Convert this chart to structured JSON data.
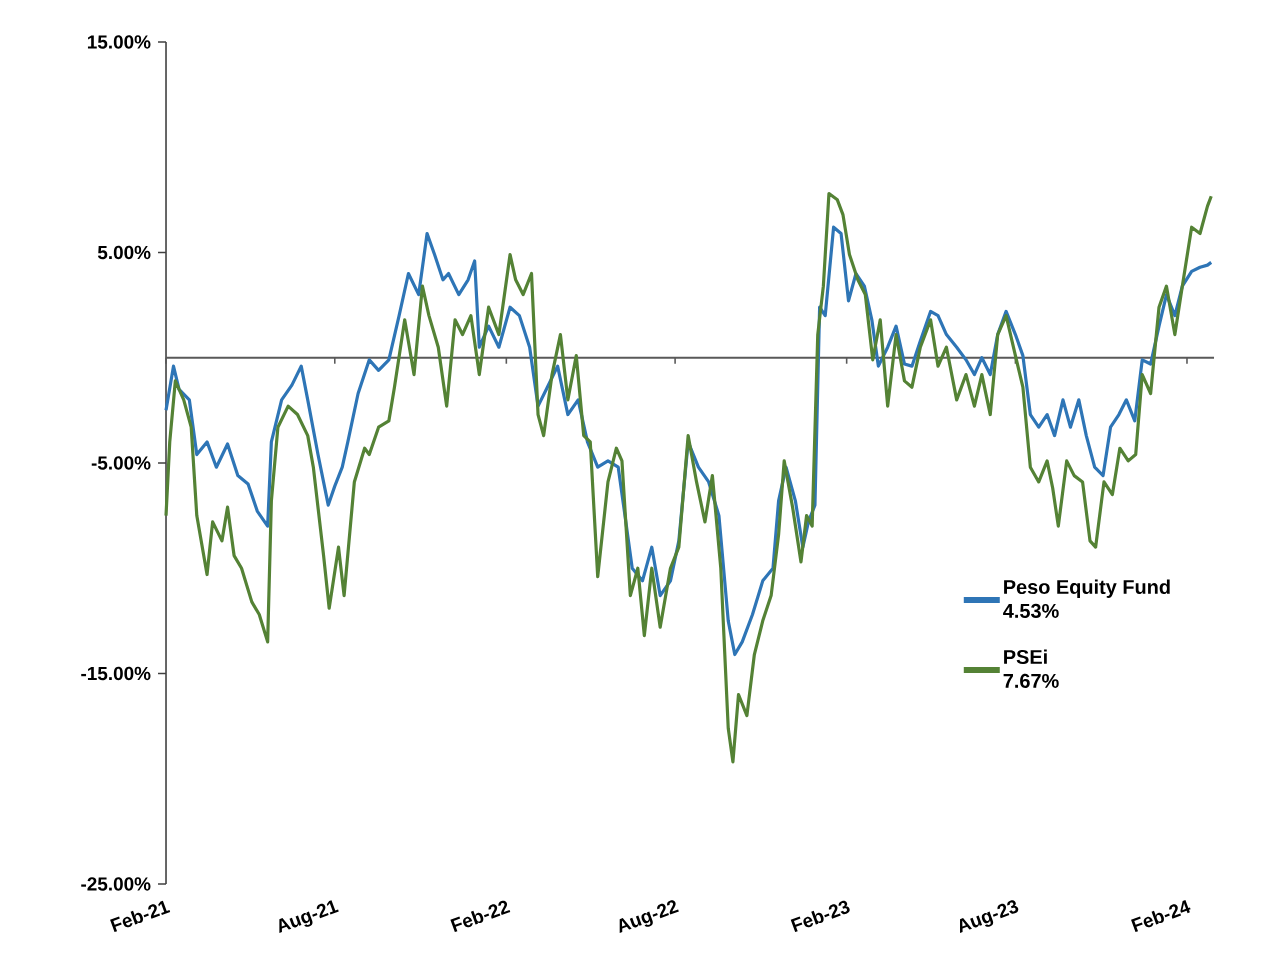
{
  "chart_data": {
    "type": "line",
    "xlim": [
      "2021-02-01",
      "2024-03-01"
    ],
    "ylim": [
      -25,
      15
    ],
    "xticks": [
      {
        "value": "2021-02-01",
        "label": "Feb-21"
      },
      {
        "value": "2021-08-01",
        "label": "Aug-21"
      },
      {
        "value": "2022-02-01",
        "label": "Feb-22"
      },
      {
        "value": "2022-08-01",
        "label": "Aug-22"
      },
      {
        "value": "2023-02-01",
        "label": "Feb-23"
      },
      {
        "value": "2023-08-01",
        "label": "Aug-23"
      },
      {
        "value": "2024-02-01",
        "label": "Feb-24"
      }
    ],
    "yticks": [
      {
        "value": -25,
        "label": "-25.00%"
      },
      {
        "value": -15,
        "label": "-15.00%"
      },
      {
        "value": -5,
        "label": "-5.00%"
      },
      {
        "value": 5,
        "label": "5.00%"
      },
      {
        "value": 15,
        "label": "15.00%"
      }
    ],
    "ref_lines": [
      {
        "axis": "y",
        "value": 0,
        "color": "#595959"
      }
    ],
    "legend": "bottom right",
    "marker": "none",
    "line_style": "solid",
    "grid": false,
    "annotations": [
      "4.53%",
      "7.67%"
    ],
    "series": [
      {
        "name": "Peso Equity Fund",
        "color": "#2e75b6",
        "x": [
          "2021-02-01",
          "2021-02-09",
          "2021-02-15",
          "2021-02-26",
          "2021-03-06",
          "2021-03-17",
          "2021-03-27",
          "2021-04-08",
          "2021-04-19",
          "2021-04-30",
          "2021-05-10",
          "2021-05-21",
          "2021-05-25",
          "2021-06-05",
          "2021-06-16",
          "2021-06-26",
          "2021-07-03",
          "2021-07-14",
          "2021-07-25",
          "2021-08-01",
          "2021-08-09",
          "2021-08-15",
          "2021-08-26",
          "2021-09-07",
          "2021-09-17",
          "2021-09-28",
          "2021-10-09",
          "2021-10-19",
          "2021-10-30",
          "2021-11-08",
          "2021-11-16",
          "2021-11-25",
          "2021-12-01",
          "2021-12-12",
          "2021-12-22",
          "2021-12-29",
          "2022-01-03",
          "2022-01-13",
          "2022-01-24",
          "2022-02-05",
          "2022-02-15",
          "2022-02-26",
          "2022-03-07",
          "2022-03-17",
          "2022-03-28",
          "2022-04-08",
          "2022-04-19",
          "2022-04-29",
          "2022-05-10",
          "2022-05-21",
          "2022-06-01",
          "2022-06-07",
          "2022-06-16",
          "2022-06-27",
          "2022-07-07",
          "2022-07-16",
          "2022-07-27",
          "2022-08-05",
          "2022-08-15",
          "2022-08-26",
          "2022-09-06",
          "2022-09-17",
          "2022-09-27",
          "2022-10-04",
          "2022-10-12",
          "2022-10-23",
          "2022-11-03",
          "2022-11-14",
          "2022-11-20",
          "2022-11-28",
          "2022-12-08",
          "2022-12-16",
          "2022-12-22",
          "2022-12-29",
          "2023-01-03",
          "2023-01-09",
          "2023-01-18",
          "2023-01-26",
          "2023-02-03",
          "2023-02-11",
          "2023-02-20",
          "2023-02-28",
          "2023-03-07",
          "2023-03-17",
          "2023-03-26",
          "2023-04-04",
          "2023-04-12",
          "2023-04-21",
          "2023-05-02",
          "2023-05-10",
          "2023-05-19",
          "2023-05-30",
          "2023-06-09",
          "2023-06-18",
          "2023-06-26",
          "2023-07-05",
          "2023-07-13",
          "2023-07-22",
          "2023-08-01",
          "2023-08-09",
          "2023-08-17",
          "2023-08-26",
          "2023-09-04",
          "2023-09-12",
          "2023-09-21",
          "2023-09-29",
          "2023-10-08",
          "2023-10-16",
          "2023-10-25",
          "2023-11-03",
          "2023-11-11",
          "2023-11-20",
          "2023-11-28",
          "2023-12-07",
          "2023-12-15",
          "2023-12-24",
          "2024-01-02",
          "2024-01-10",
          "2024-01-19",
          "2024-01-27",
          "2024-02-06",
          "2024-02-15",
          "2024-02-23",
          "2024-02-27"
        ],
        "values": [
          -2.5,
          -0.4,
          -1.5,
          -2,
          -4.6,
          -4,
          -5.2,
          -4.1,
          -5.6,
          -6,
          -7.3,
          -8,
          -4,
          -2,
          -1.3,
          -0.4,
          -2,
          -4.6,
          -7,
          -6.1,
          -5.2,
          -4,
          -1.7,
          -0.1,
          -0.6,
          -0.1,
          2,
          4,
          3,
          5.9,
          4.9,
          3.7,
          4,
          3,
          3.7,
          4.6,
          0.5,
          1.5,
          0.5,
          2.4,
          2,
          0.5,
          -2.3,
          -1.4,
          -0.4,
          -2.7,
          -2,
          -4,
          -5.2,
          -4.9,
          -5.2,
          -7.1,
          -10,
          -10.6,
          -9,
          -11.3,
          -10.6,
          -8.7,
          -4,
          -5.2,
          -5.9,
          -7.5,
          -12.5,
          -14.1,
          -13.5,
          -12.2,
          -10.6,
          -10,
          -6.8,
          -5.2,
          -6.8,
          -9,
          -7.8,
          -7,
          2.4,
          2,
          6.2,
          5.9,
          2.7,
          4,
          3.4,
          1.8,
          -0.4,
          0.5,
          1.5,
          -0.3,
          -0.4,
          0.8,
          2.2,
          2,
          1.1,
          0.5,
          -0.1,
          -0.8,
          0,
          -0.8,
          1.1,
          2.2,
          1.1,
          0.1,
          -2.7,
          -3.3,
          -2.7,
          -3.7,
          -2,
          -3.3,
          -2,
          -3.7,
          -5.2,
          -5.6,
          -3.3,
          -2.7,
          -2,
          -3,
          -0.1,
          -0.3,
          1.5,
          3,
          2,
          3.4,
          4.1,
          4.3,
          4.4,
          4.53
        ]
      },
      {
        "name": "PSEi",
        "color": "#548235",
        "x": [
          "2021-02-01",
          "2021-02-05",
          "2021-02-11",
          "2021-02-20",
          "2021-02-28",
          "2021-03-06",
          "2021-03-17",
          "2021-03-23",
          "2021-04-02",
          "2021-04-08",
          "2021-04-15",
          "2021-04-23",
          "2021-05-04",
          "2021-05-12",
          "2021-05-21",
          "2021-05-25",
          "2021-06-01",
          "2021-06-12",
          "2021-06-22",
          "2021-07-03",
          "2021-07-09",
          "2021-07-20",
          "2021-07-26",
          "2021-08-05",
          "2021-08-11",
          "2021-08-22",
          "2021-09-02",
          "2021-09-07",
          "2021-09-17",
          "2021-09-28",
          "2021-10-04",
          "2021-10-15",
          "2021-10-25",
          "2021-11-03",
          "2021-11-10",
          "2021-11-20",
          "2021-11-29",
          "2021-12-08",
          "2021-12-16",
          "2021-12-25",
          "2022-01-03",
          "2022-01-13",
          "2022-01-24",
          "2022-02-05",
          "2022-02-11",
          "2022-02-19",
          "2022-02-28",
          "2022-03-07",
          "2022-03-13",
          "2022-03-22",
          "2022-03-31",
          "2022-04-08",
          "2022-04-17",
          "2022-04-25",
          "2022-05-02",
          "2022-05-10",
          "2022-05-21",
          "2022-05-30",
          "2022-06-05",
          "2022-06-14",
          "2022-06-22",
          "2022-06-29",
          "2022-07-07",
          "2022-07-16",
          "2022-07-27",
          "2022-08-05",
          "2022-08-15",
          "2022-08-24",
          "2022-09-02",
          "2022-09-10",
          "2022-09-19",
          "2022-09-27",
          "2022-10-02",
          "2022-10-08",
          "2022-10-17",
          "2022-10-25",
          "2022-11-03",
          "2022-11-12",
          "2022-11-20",
          "2022-11-26",
          "2022-12-05",
          "2022-12-14",
          "2022-12-20",
          "2022-12-26",
          "2023-01-01",
          "2023-01-07",
          "2023-01-13",
          "2023-01-22",
          "2023-01-28",
          "2023-02-04",
          "2023-02-13",
          "2023-02-21",
          "2023-03-01",
          "2023-03-09",
          "2023-03-17",
          "2023-03-26",
          "2023-04-04",
          "2023-04-12",
          "2023-04-21",
          "2023-05-02",
          "2023-05-10",
          "2023-05-19",
          "2023-05-30",
          "2023-06-09",
          "2023-06-18",
          "2023-06-26",
          "2023-07-05",
          "2023-07-13",
          "2023-07-22",
          "2023-08-01",
          "2023-08-09",
          "2023-08-17",
          "2023-08-26",
          "2023-09-04",
          "2023-09-10",
          "2023-09-16",
          "2023-09-25",
          "2023-10-03",
          "2023-10-12",
          "2023-10-20",
          "2023-10-26",
          "2023-11-04",
          "2023-11-13",
          "2023-11-21",
          "2023-11-30",
          "2023-12-08",
          "2023-12-15",
          "2023-12-24",
          "2024-01-02",
          "2024-01-10",
          "2024-01-19",
          "2024-01-27",
          "2024-02-06",
          "2024-02-15",
          "2024-02-23",
          "2024-02-27"
        ],
        "values": [
          -7.5,
          -4,
          -1.1,
          -2,
          -3.3,
          -7.5,
          -10.3,
          -7.8,
          -8.7,
          -7.1,
          -9.4,
          -10,
          -11.6,
          -12.2,
          -13.5,
          -6.8,
          -3.3,
          -2.3,
          -2.7,
          -3.7,
          -5.2,
          -9.4,
          -11.9,
          -9,
          -11.3,
          -5.9,
          -4.3,
          -4.6,
          -3.3,
          -3,
          -1.4,
          1.8,
          -0.8,
          3.4,
          2,
          0.5,
          -2.3,
          1.8,
          1.1,
          2,
          -0.8,
          2.4,
          1.1,
          4.9,
          3.7,
          3,
          4,
          -2.7,
          -3.7,
          -0.8,
          1.1,
          -2,
          0.1,
          -3.7,
          -4,
          -10.4,
          -5.9,
          -4.3,
          -4.9,
          -11.3,
          -10,
          -13.2,
          -10,
          -12.8,
          -10,
          -9,
          -3.7,
          -5.9,
          -7.8,
          -5.6,
          -10,
          -17.6,
          -19.2,
          -16,
          -17,
          -14.1,
          -12.5,
          -11.3,
          -8.4,
          -4.9,
          -7.1,
          -9.7,
          -7.5,
          -8,
          1.1,
          3.4,
          7.8,
          7.5,
          6.8,
          4.9,
          3.7,
          3,
          -0.1,
          1.8,
          -2.3,
          1.1,
          -1.1,
          -1.4,
          0.5,
          1.8,
          -0.4,
          0.5,
          -2,
          -0.8,
          -2.3,
          -0.8,
          -2.7,
          1.1,
          2,
          0.1,
          -1.4,
          -5.2,
          -5.9,
          -4.9,
          -6.2,
          -8,
          -4.9,
          -5.6,
          -5.9,
          -8.7,
          -9,
          -5.9,
          -6.5,
          -4.3,
          -4.9,
          -4.6,
          -0.8,
          -1.7,
          2.4,
          3.4,
          1.1,
          3.4,
          6.2,
          5.9,
          7.2,
          7.67
        ]
      }
    ]
  }
}
